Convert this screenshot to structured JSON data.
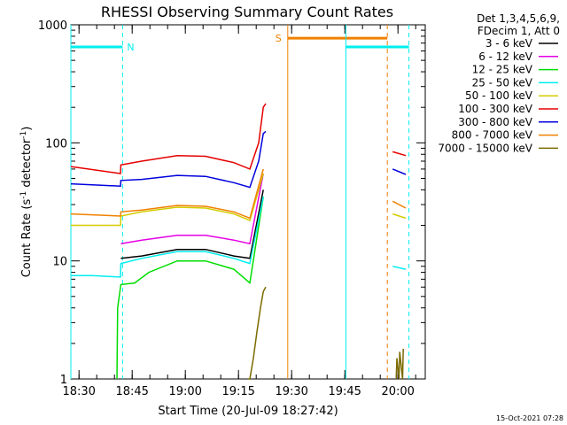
{
  "chart_data": {
    "type": "line",
    "title": "RHESSI Observing Summary Count Rates",
    "xlabel": "Start Time (20-Jul-09 18:27:42)",
    "ylabel_main": "Count Rate (s",
    "ylabel_sup1": "-1",
    "ylabel_mid": " detector",
    "ylabel_sup2": "-1",
    "ylabel_end": ")",
    "yscale": "log",
    "ylim": [
      1,
      1000
    ],
    "x_unit": "minutes since 18:27:42",
    "xlim": [
      0,
      100
    ],
    "x_ticks": [
      {
        "label": "18:30",
        "min": 2.3
      },
      {
        "label": "18:45",
        "min": 17.3
      },
      {
        "label": "19:00",
        "min": 32.3
      },
      {
        "label": "19:15",
        "min": 47.3
      },
      {
        "label": "19:30",
        "min": 62.3
      },
      {
        "label": "19:45",
        "min": 77.3
      },
      {
        "label": "20:00",
        "min": 92.3
      }
    ],
    "y_ticks": [
      {
        "label": "1",
        "value": 1
      },
      {
        "label": "10",
        "value": 10
      },
      {
        "label": "100",
        "value": 100
      },
      {
        "label": "1000",
        "value": 1000
      }
    ],
    "legend_header": [
      "Det 1,3,4,5,6,9,",
      "FDecim 1, Att 0"
    ],
    "timestamp": "15-Oct-2021 07:28",
    "series": [
      {
        "name": "3 - 6 keV",
        "color": "#000000",
        "x": [
          14.0,
          14.1,
          20,
          30,
          38,
          46,
          50.5,
          54.3
        ],
        "y": [
          null,
          10.5,
          11,
          12.5,
          12.5,
          11,
          10.5,
          40
        ]
      },
      {
        "name": "6 - 12 keV",
        "color": "#e600e6",
        "x": [
          14.0,
          14.1,
          20,
          30,
          38,
          46,
          50.5,
          54.3
        ],
        "y": [
          null,
          14,
          15,
          16.5,
          16.5,
          15,
          14,
          55
        ]
      },
      {
        "name": "12 - 25 keV",
        "color": "#00dd00",
        "x": [
          13,
          13.2,
          14,
          14.1,
          18,
          22,
          30,
          38,
          46,
          50.5,
          54.3
        ],
        "y": [
          1,
          4,
          6,
          6.3,
          6.5,
          8,
          10,
          10,
          8.5,
          6.5,
          35
        ]
      },
      {
        "name": "25 - 50 keV",
        "color": "#00eeee",
        "x": [
          0,
          6,
          14.0,
          14.1,
          20,
          30,
          38,
          46,
          50.5,
          54.3,
          null,
          90.8,
          94.5
        ],
        "y": [
          7.5,
          7.5,
          7.3,
          9.5,
          10.5,
          12,
          12,
          10.5,
          9.5,
          35,
          null,
          9,
          8.5
        ]
      },
      {
        "name": "50 - 100 keV",
        "color": "#d4cc00",
        "x": [
          0,
          14.0,
          14.1,
          20,
          30,
          38,
          46,
          50.5,
          54.3,
          null,
          90.8,
          94.5
        ],
        "y": [
          20,
          20,
          24,
          26,
          28.5,
          28,
          25,
          22,
          55,
          null,
          25,
          23
        ]
      },
      {
        "name": "100 - 300 keV",
        "color": "#e60000",
        "x": [
          0,
          14.0,
          14.1,
          20,
          30,
          38,
          46,
          50.5,
          53,
          54.3,
          55.0,
          null,
          90.8,
          94.5
        ],
        "y": [
          63,
          55,
          65,
          70,
          78,
          77,
          68,
          60,
          100,
          200,
          215,
          null,
          84,
          78
        ]
      },
      {
        "name": "300 - 800 keV",
        "color": "#0000dd",
        "x": [
          0,
          14.0,
          14.1,
          20,
          30,
          38,
          46,
          50.5,
          53,
          54.3,
          55.0,
          null,
          90.8,
          94.5
        ],
        "y": [
          45,
          43,
          48,
          49,
          53,
          52,
          46,
          42,
          70,
          120,
          125,
          null,
          60,
          54
        ]
      },
      {
        "name": "800 - 7000 keV",
        "color": "#f08000",
        "x": [
          0,
          14.0,
          14.1,
          20,
          30,
          38,
          46,
          50.5,
          54.3,
          null,
          90.8,
          94.5
        ],
        "y": [
          25,
          24,
          26,
          27,
          29.5,
          29,
          26,
          23,
          60,
          null,
          32,
          28
        ]
      },
      {
        "name": "7000 - 15000 keV",
        "color": "#7a6a00",
        "x": [
          50.0,
          50.5,
          51.5,
          52.5,
          53.5,
          54.3,
          55.0,
          null,
          91.8,
          92.0,
          92.6,
          92.8,
          93.6,
          93.8
        ],
        "y": [
          1,
          1,
          1.5,
          2.5,
          4,
          5.5,
          6,
          null,
          1,
          1.5,
          1,
          1.7,
          1,
          1.8
        ]
      }
    ],
    "flags": [
      {
        "label": "N",
        "color": "#00eeee",
        "x0": 0,
        "x1": 14.6,
        "y": 650,
        "dash_at": 14.6,
        "solid_at": 0
      },
      {
        "label": "S",
        "color": "#f08000",
        "x0": 61.2,
        "x1": 89.3,
        "y": 770,
        "dash_at": 89.3,
        "solid_at": 61.2
      },
      {
        "label": "",
        "color": "#00eeee",
        "x0": 77.6,
        "x1": 95.4,
        "y": 650,
        "dash_at": 95.4,
        "solid_at": 77.6
      }
    ]
  }
}
